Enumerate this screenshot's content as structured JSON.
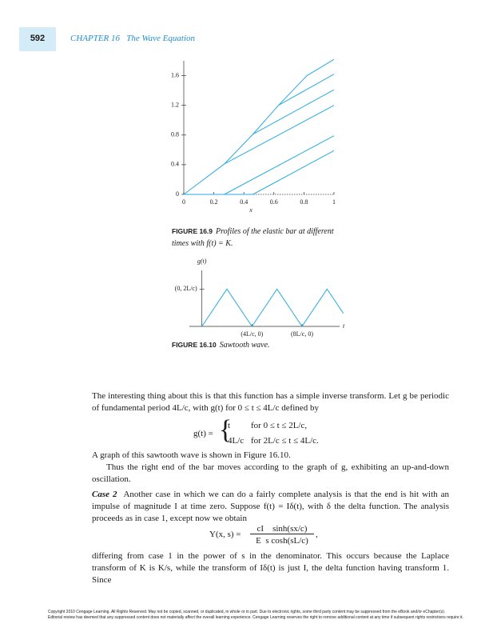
{
  "header": {
    "page_number": "592",
    "chapter": "CHAPTER 16   The Wave Equation"
  },
  "chart_data": [
    {
      "type": "line",
      "xlabel": "x",
      "xlim": [
        0,
        1
      ],
      "ylim": [
        0,
        1.8
      ],
      "xticks": [
        0,
        0.2,
        0.4,
        0.6,
        0.8,
        1
      ],
      "yticks": [
        0,
        0.4,
        0.8,
        1.2,
        1.6
      ],
      "series": [
        {
          "color": "#29abe2",
          "x": [
            0,
            0.27,
            0.46,
            0.63,
            0.82,
            1.0
          ],
          "values": [
            0,
            0.41,
            0.81,
            1.2,
            1.6,
            1.82
          ]
        },
        {
          "color": "#29abe2",
          "x": [
            0.63,
            1.0
          ],
          "values": [
            1.2,
            1.62
          ]
        },
        {
          "color": "#29abe2",
          "x": [
            0.46,
            1.0
          ],
          "values": [
            0.81,
            1.41
          ]
        },
        {
          "color": "#29abe2",
          "x": [
            0.27,
            1.0
          ],
          "values": [
            0.41,
            1.2
          ]
        },
        {
          "color": "#29abe2",
          "x": [
            0.27,
            1.0
          ],
          "values": [
            0,
            0.79
          ]
        },
        {
          "color": "#29abe2",
          "x": [
            0.46,
            1.0
          ],
          "values": [
            0,
            0.59
          ]
        },
        {
          "color": "#29abe2",
          "x": [
            0,
            0.46
          ],
          "values": [
            0,
            0
          ]
        }
      ]
    },
    {
      "type": "line",
      "xlabel": "t",
      "ylabel": "g(t)",
      "xlim": [
        -1,
        11
      ],
      "ylim": [
        0,
        3
      ],
      "xticks": [
        {
          "value": 4,
          "label": "(4L/c, 0)"
        },
        {
          "value": 8,
          "label": "(8L/c, 0)"
        }
      ],
      "yticks": [
        {
          "value": 2,
          "label": "(0, 2L/c)"
        }
      ],
      "series": [
        {
          "color": "#29abe2",
          "x": [
            0,
            2,
            4,
            6,
            8,
            10,
            11.3
          ],
          "values": [
            0,
            2,
            0,
            2,
            0,
            2,
            0.7
          ]
        }
      ]
    }
  ],
  "figure_16_9": {
    "label": "FIGURE 16.9",
    "caption": "Profiles of the elastic bar at different times with f(t) = K."
  },
  "figure_16_10": {
    "label": "FIGURE 16.10",
    "caption": "Sawtooth wave."
  },
  "paragraph_1": "The interesting thing about this is that this function has a simple inverse transform. Let g be periodic of fundamental period 4L/c, with g(t) for 0 ≤ t ≤ 4L/c defined by",
  "equation_1": {
    "lhs": "g(t) =",
    "cases": [
      [
        "t",
        "for 0 ≤ t ≤ 2L/c,"
      ],
      [
        "4L/c",
        "for 2L/c ≤ t ≤ 4L/c."
      ]
    ]
  },
  "paragraph_2": "A graph of this sawtooth wave is shown in Figure 16.10.",
  "paragraph_3": "Thus the right end of the bar moves according to the graph of g, exhibiting an up-and-down oscillation.",
  "paragraph_4": {
    "case_label": "Case 2",
    "text": "Another case in which we can do a fairly complete analysis is that the end is hit with an impulse of magnitude I at time zero. Suppose f(t) = Iδ(t), with δ the delta function. The analysis proceeds as in case 1, except now we obtain"
  },
  "equation_2": {
    "lhs": "Y(x, s) =",
    "numerator": "cI    sinh(sx/c)",
    "denominator": "E  s cosh(sL/c)",
    "trail": ","
  },
  "paragraph_5": "differing from case 1 in the power of s in the denominator. This occurs because the Laplace transform of K is K/s, while the transform of Iδ(t) is just I, the delta function having transform 1. Since",
  "footer": [
    "Copyright 2010 Cengage Learning. All Rights Reserved. May not be copied, scanned, or duplicated, in whole or in part. Due to electronic rights, some third party content may be suppressed from the eBook and/or eChapter(s).",
    "Editorial review has deemed that any suppressed content does not materially affect the overall learning experience. Cengage Learning reserves the right to remove additional content at any time if subsequent rights restrictions require it."
  ]
}
